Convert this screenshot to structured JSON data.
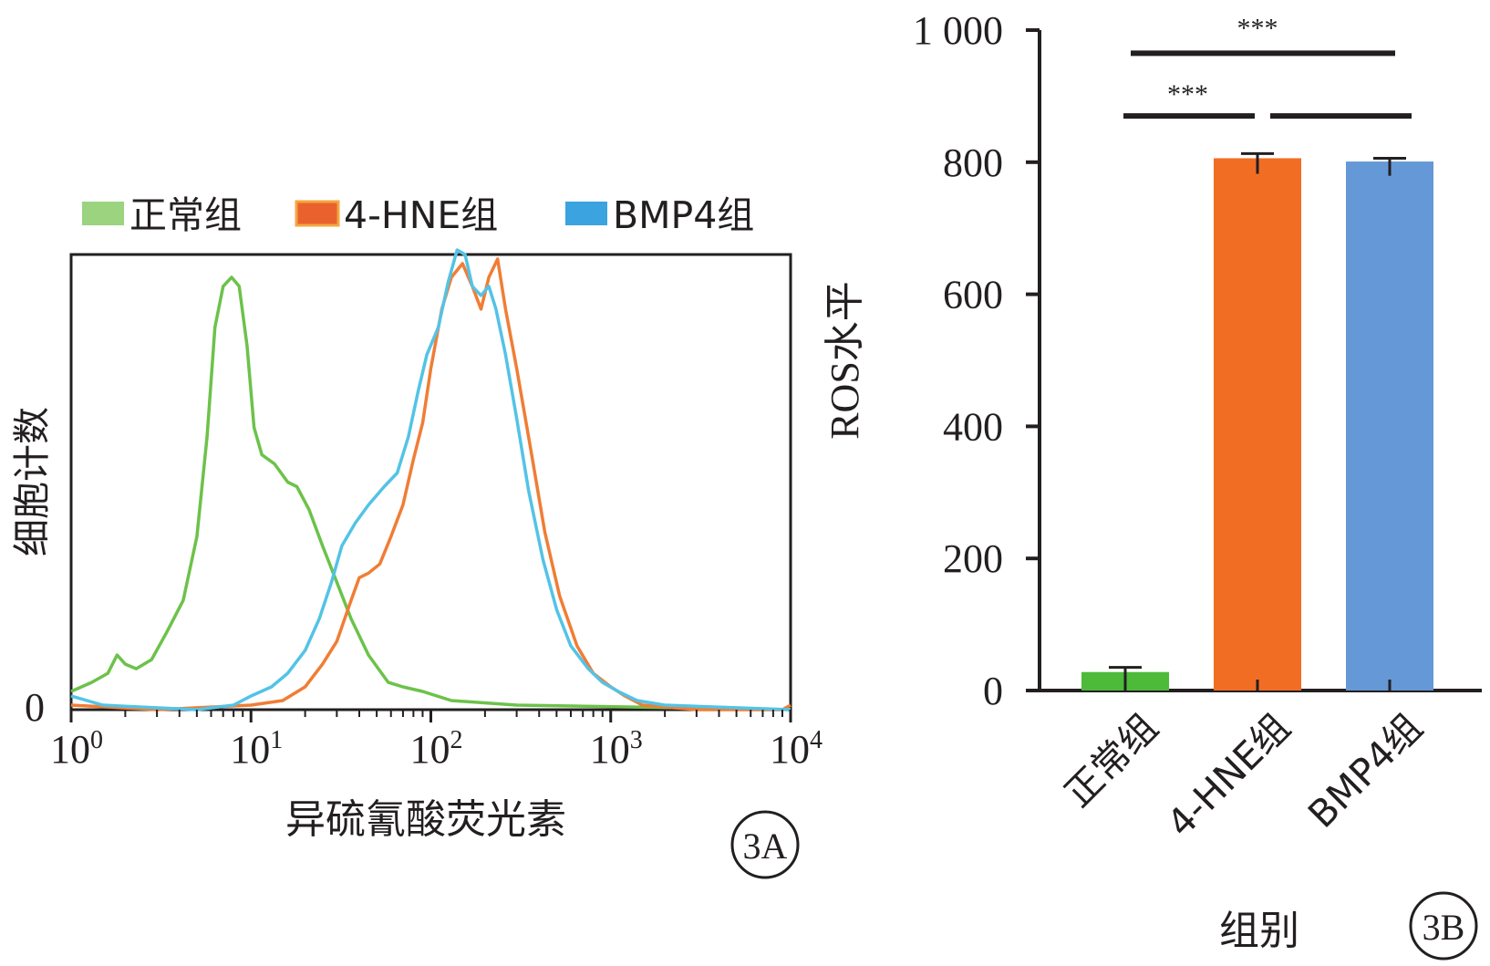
{
  "chart_data": [
    {
      "type": "line",
      "panel_label": "3A",
      "xlabel": "异硫氰酸荧光素",
      "ylabel": "细胞计数",
      "x_scale": "log",
      "xlim": [
        1,
        10000
      ],
      "x_ticks": [
        {
          "value": 1,
          "base": "10",
          "exp": "0"
        },
        {
          "value": 10,
          "base": "10",
          "exp": "1"
        },
        {
          "value": 100,
          "base": "10",
          "exp": "2"
        },
        {
          "value": 1000,
          "base": "10",
          "exp": "3"
        },
        {
          "value": 10000,
          "base": "10",
          "exp": "4"
        }
      ],
      "y_ticks": [
        {
          "value": 0,
          "label": "0"
        }
      ],
      "ylim": [
        0,
        100
      ],
      "legend_placement": "top",
      "series": [
        {
          "name": "正常组",
          "color": "#6cc24a",
          "legend_color": "#9bd37f",
          "points": [
            [
              1,
              4
            ],
            [
              1.3,
              6
            ],
            [
              1.6,
              8
            ],
            [
              1.8,
              12
            ],
            [
              2.0,
              10
            ],
            [
              2.3,
              9
            ],
            [
              2.8,
              11
            ],
            [
              3.4,
              17
            ],
            [
              4.2,
              24
            ],
            [
              5.0,
              38
            ],
            [
              5.7,
              60
            ],
            [
              6.3,
              84
            ],
            [
              7.0,
              93
            ],
            [
              7.8,
              95
            ],
            [
              8.6,
              93
            ],
            [
              9.5,
              80
            ],
            [
              10.4,
              62
            ],
            [
              11.5,
              56
            ],
            [
              13.5,
              54
            ],
            [
              16,
              50
            ],
            [
              18,
              49
            ],
            [
              21,
              44
            ],
            [
              25,
              36
            ],
            [
              30,
              28
            ],
            [
              36,
              20
            ],
            [
              45,
              12
            ],
            [
              58,
              6
            ],
            [
              70,
              5
            ],
            [
              90,
              4
            ],
            [
              130,
              2
            ],
            [
              300,
              1
            ],
            [
              10000,
              0
            ]
          ]
        },
        {
          "name": "4-HNE组",
          "color": "#f07d35",
          "legend_color": "#e9622d",
          "points": [
            [
              1,
              1
            ],
            [
              3,
              0
            ],
            [
              10,
              1
            ],
            [
              15,
              2
            ],
            [
              20,
              5
            ],
            [
              25,
              10
            ],
            [
              30,
              15
            ],
            [
              36,
              24
            ],
            [
              40,
              29
            ],
            [
              45,
              30
            ],
            [
              52,
              32
            ],
            [
              60,
              38
            ],
            [
              70,
              45
            ],
            [
              80,
              55
            ],
            [
              90,
              63
            ],
            [
              100,
              75
            ],
            [
              115,
              88
            ],
            [
              130,
              95
            ],
            [
              150,
              98
            ],
            [
              170,
              93
            ],
            [
              190,
              88
            ],
            [
              210,
              95
            ],
            [
              235,
              99
            ],
            [
              260,
              88
            ],
            [
              300,
              75
            ],
            [
              360,
              57
            ],
            [
              430,
              39
            ],
            [
              520,
              25
            ],
            [
              650,
              14
            ],
            [
              800,
              8
            ],
            [
              1000,
              5
            ],
            [
              1200,
              3
            ],
            [
              1500,
              1
            ],
            [
              3000,
              0
            ],
            [
              9000,
              0
            ],
            [
              10000,
              1
            ]
          ]
        },
        {
          "name": "BMP4组",
          "color": "#53c3e6",
          "legend_color": "#3ba3df",
          "points": [
            [
              1,
              3
            ],
            [
              1.5,
              1
            ],
            [
              5,
              0
            ],
            [
              8,
              1
            ],
            [
              10,
              3
            ],
            [
              13,
              5
            ],
            [
              16,
              8
            ],
            [
              20,
              13
            ],
            [
              24,
              20
            ],
            [
              28,
              28
            ],
            [
              32,
              36
            ],
            [
              38,
              41
            ],
            [
              45,
              45
            ],
            [
              55,
              49
            ],
            [
              65,
              52
            ],
            [
              75,
              60
            ],
            [
              85,
              70
            ],
            [
              95,
              78
            ],
            [
              110,
              84
            ],
            [
              125,
              94
            ],
            [
              140,
              101
            ],
            [
              155,
              100
            ],
            [
              170,
              93
            ],
            [
              190,
              91
            ],
            [
              210,
              93
            ],
            [
              230,
              88
            ],
            [
              260,
              78
            ],
            [
              300,
              64
            ],
            [
              350,
              48
            ],
            [
              420,
              33
            ],
            [
              500,
              22
            ],
            [
              600,
              14
            ],
            [
              750,
              9
            ],
            [
              900,
              6
            ],
            [
              1100,
              4
            ],
            [
              1400,
              2
            ],
            [
              2000,
              1
            ],
            [
              10000,
              0
            ]
          ]
        }
      ]
    },
    {
      "type": "bar",
      "panel_label": "3B",
      "xlabel": "组别",
      "ylabel": "ROS水平",
      "ylim": [
        0,
        1000
      ],
      "y_ticks": [
        {
          "value": 0,
          "label": "0"
        },
        {
          "value": 200,
          "label": "200"
        },
        {
          "value": 400,
          "label": "400"
        },
        {
          "value": 600,
          "label": "600"
        },
        {
          "value": 800,
          "label": "800"
        },
        {
          "value": 1000,
          "label": "1 000"
        }
      ],
      "categories": [
        "正常组",
        "4-HNE组",
        "BMP4组"
      ],
      "values": [
        28,
        806,
        801
      ],
      "errors": [
        7,
        7,
        5
      ],
      "colors": [
        "#4dba3a",
        "#f26d24",
        "#6598d6"
      ],
      "annotations": [
        {
          "label": "***",
          "from_bar": 0,
          "to_bars": [
            1,
            2
          ],
          "level": 870
        },
        {
          "label": "***",
          "from_bar": 0,
          "to_bars": [
            2
          ],
          "level": 965
        }
      ]
    }
  ]
}
